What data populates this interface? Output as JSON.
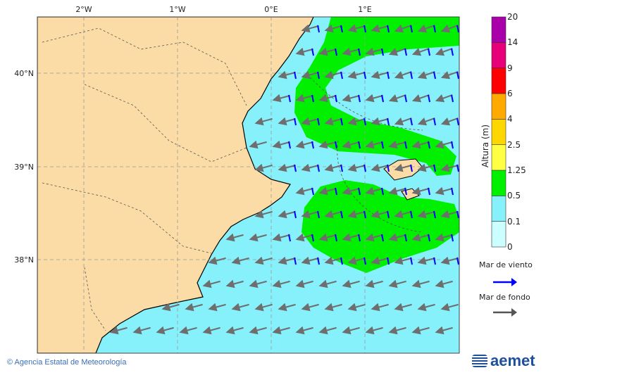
{
  "map": {
    "lon_labels": [
      "2°W",
      "1°W",
      "0°E",
      "1°E"
    ],
    "lat_labels": [
      "40°N",
      "39°N",
      "38°N"
    ],
    "colors": {
      "land": "#fbdca6",
      "sea_low": "#86f0fb",
      "sea_mid": "#00f000",
      "wind_sea": "#0000ff",
      "swell": "#6e6e6e"
    }
  },
  "colorbar": {
    "title": "Altura (m)",
    "ticks": [
      "0",
      "0.1",
      "0.5",
      "1.25",
      "2.5",
      "4",
      "6",
      "9",
      "14",
      "20"
    ],
    "colors": [
      "#ccffff",
      "#86f0fb",
      "#00f000",
      "#ffff44",
      "#ffd700",
      "#ffaa00",
      "#ff0000",
      "#e6007a",
      "#aa00aa"
    ]
  },
  "legend": {
    "wind_sea": "Mar de viento",
    "swell": "Mar de fondo"
  },
  "footer": {
    "credit": "© Agencia Estatal de Meteorología",
    "logo_text": "aemet"
  }
}
